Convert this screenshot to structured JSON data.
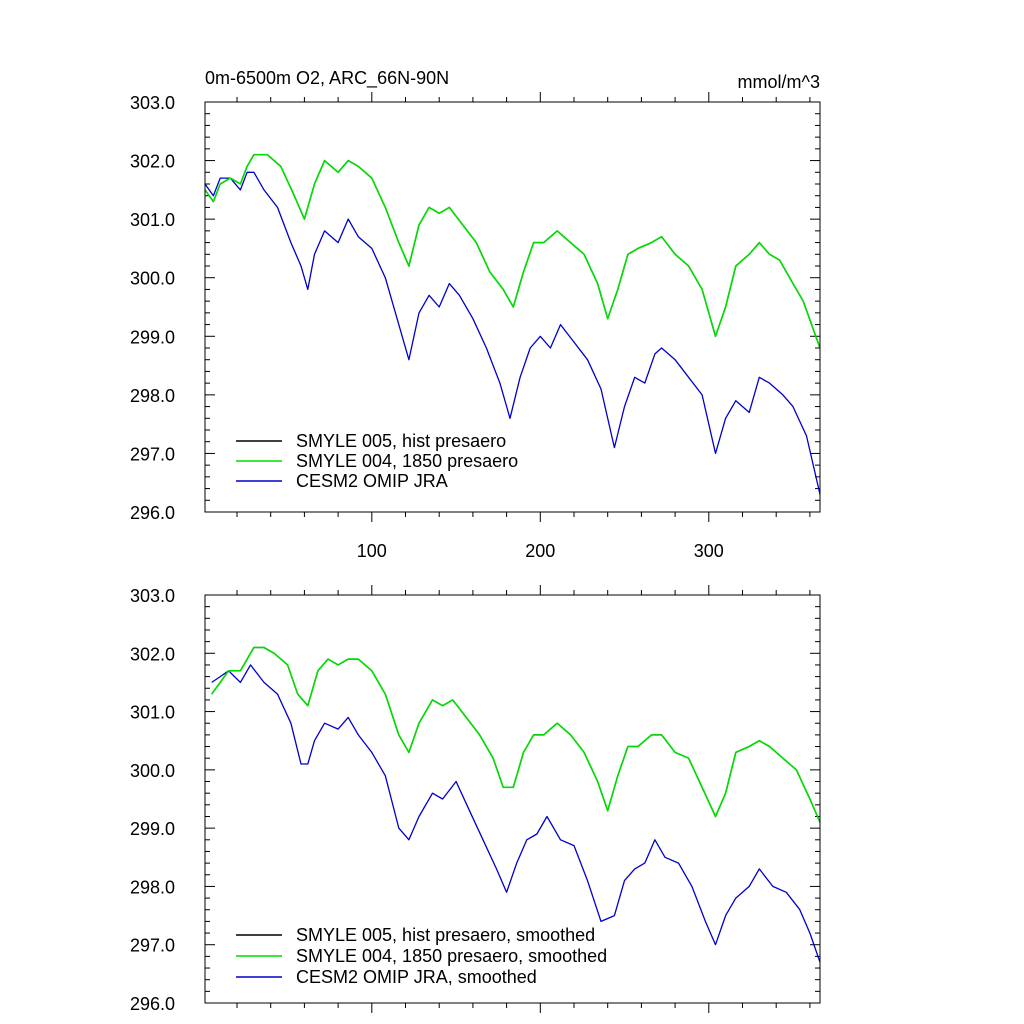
{
  "chart_data": [
    {
      "type": "line",
      "title": "0m-6500m O2, ARC_66N-90N",
      "units": "mmol/m^3",
      "xlim": [
        1,
        366
      ],
      "ylim": [
        296.0,
        303.0
      ],
      "xticks": [
        100,
        200,
        300
      ],
      "xtick_labels": [
        "100",
        "200",
        "300"
      ],
      "yticks": [
        296,
        297,
        298,
        299,
        300,
        301,
        302,
        303
      ],
      "ytick_labels": [
        "296.0",
        "297.0",
        "298.0",
        "299.0",
        "300.0",
        "301.0",
        "302.0",
        "303.0"
      ],
      "legend_position": "bottom-left",
      "series": [
        {
          "name": "SMYLE 005, hist presaero",
          "color": "#000000",
          "x": [
            1,
            6,
            10,
            16,
            22,
            26,
            30,
            38,
            46,
            54,
            60,
            66,
            72,
            80,
            86,
            92,
            100,
            108,
            116,
            122,
            128,
            134,
            140,
            146,
            154,
            162,
            170,
            178,
            184,
            190,
            196,
            202,
            210,
            218,
            226,
            234,
            240,
            246,
            252,
            258,
            266,
            272,
            280,
            288,
            296,
            304,
            310,
            316,
            324,
            330,
            336,
            342,
            350,
            356,
            366
          ],
          "y": [
            301.5,
            301.3,
            301.6,
            301.7,
            301.6,
            301.9,
            302.1,
            302.1,
            301.9,
            301.4,
            301.0,
            301.6,
            302.0,
            301.8,
            302.0,
            301.9,
            301.7,
            301.2,
            300.6,
            300.2,
            300.9,
            301.2,
            301.1,
            301.2,
            300.9,
            300.6,
            300.1,
            299.8,
            299.5,
            300.1,
            300.6,
            300.6,
            300.8,
            300.6,
            300.4,
            299.9,
            299.3,
            299.8,
            300.4,
            300.5,
            300.6,
            300.7,
            300.4,
            300.2,
            299.8,
            299.0,
            299.5,
            300.2,
            300.4,
            300.6,
            300.4,
            300.3,
            299.9,
            299.6,
            298.8
          ]
        },
        {
          "name": "SMYLE 004, 1850 presaero",
          "color": "#00dd00",
          "x": [
            1,
            6,
            10,
            16,
            22,
            26,
            30,
            38,
            46,
            54,
            60,
            66,
            72,
            80,
            86,
            92,
            100,
            108,
            116,
            122,
            128,
            134,
            140,
            146,
            154,
            162,
            170,
            178,
            184,
            190,
            196,
            202,
            210,
            218,
            226,
            234,
            240,
            246,
            252,
            258,
            266,
            272,
            280,
            288,
            296,
            304,
            310,
            316,
            324,
            330,
            336,
            342,
            350,
            356,
            366
          ],
          "y": [
            301.5,
            301.3,
            301.6,
            301.7,
            301.6,
            301.9,
            302.1,
            302.1,
            301.9,
            301.4,
            301.0,
            301.6,
            302.0,
            301.8,
            302.0,
            301.9,
            301.7,
            301.2,
            300.6,
            300.2,
            300.9,
            301.2,
            301.1,
            301.2,
            300.9,
            300.6,
            300.1,
            299.8,
            299.5,
            300.1,
            300.6,
            300.6,
            300.8,
            300.6,
            300.4,
            299.9,
            299.3,
            299.8,
            300.4,
            300.5,
            300.6,
            300.7,
            300.4,
            300.2,
            299.8,
            299.0,
            299.5,
            300.2,
            300.4,
            300.6,
            300.4,
            300.3,
            299.9,
            299.6,
            298.8
          ]
        },
        {
          "name": "CESM2 OMIP JRA",
          "color": "#0000cc",
          "x": [
            1,
            6,
            10,
            16,
            22,
            26,
            30,
            36,
            44,
            52,
            58,
            62,
            66,
            72,
            80,
            86,
            92,
            100,
            108,
            116,
            122,
            128,
            134,
            140,
            146,
            152,
            160,
            168,
            176,
            182,
            188,
            194,
            200,
            206,
            212,
            220,
            228,
            236,
            244,
            250,
            256,
            262,
            268,
            272,
            280,
            288,
            296,
            304,
            310,
            316,
            324,
            330,
            336,
            344,
            350,
            358,
            366
          ],
          "y": [
            301.6,
            301.4,
            301.7,
            301.7,
            301.5,
            301.8,
            301.8,
            301.5,
            301.2,
            300.6,
            300.2,
            299.8,
            300.4,
            300.8,
            300.6,
            301.0,
            300.7,
            300.5,
            300.0,
            299.2,
            298.6,
            299.4,
            299.7,
            299.5,
            299.9,
            299.7,
            299.3,
            298.8,
            298.2,
            297.6,
            298.3,
            298.8,
            299.0,
            298.8,
            299.2,
            298.9,
            298.6,
            298.1,
            297.1,
            297.8,
            298.3,
            298.2,
            298.7,
            298.8,
            298.6,
            298.3,
            298.0,
            297.0,
            297.6,
            297.9,
            297.7,
            298.3,
            298.2,
            298.0,
            297.8,
            297.3,
            296.3
          ]
        }
      ]
    },
    {
      "type": "line",
      "title": "",
      "xlim": [
        1,
        366
      ],
      "ylim": [
        296.0,
        303.0
      ],
      "xticks": [
        100,
        200,
        300
      ],
      "yticks": [
        296,
        297,
        298,
        299,
        300,
        301,
        302,
        303
      ],
      "ytick_labels": [
        "296.0",
        "297.0",
        "298.0",
        "299.0",
        "300.0",
        "301.0",
        "302.0",
        "303.0"
      ],
      "legend_position": "bottom-left",
      "series": [
        {
          "name": "SMYLE 005, hist presaero, smoothed",
          "color": "#000000",
          "x": [
            5,
            10,
            15,
            22,
            30,
            36,
            42,
            50,
            56,
            62,
            68,
            74,
            80,
            86,
            92,
            100,
            108,
            116,
            122,
            128,
            136,
            142,
            148,
            156,
            164,
            172,
            178,
            184,
            190,
            196,
            202,
            210,
            218,
            226,
            234,
            240,
            246,
            252,
            258,
            266,
            272,
            280,
            288,
            296,
            304,
            310,
            316,
            324,
            330,
            336,
            344,
            352,
            360,
            366
          ],
          "y": [
            301.3,
            301.5,
            301.7,
            301.7,
            302.1,
            302.1,
            302.0,
            301.8,
            301.3,
            301.1,
            301.7,
            301.9,
            301.8,
            301.9,
            301.9,
            301.7,
            301.3,
            300.6,
            300.3,
            300.8,
            301.2,
            301.1,
            301.2,
            300.9,
            300.6,
            300.2,
            299.7,
            299.7,
            300.3,
            300.6,
            300.6,
            300.8,
            300.6,
            300.3,
            299.8,
            299.3,
            299.9,
            300.4,
            300.4,
            300.6,
            300.6,
            300.3,
            300.2,
            299.7,
            299.2,
            299.6,
            300.3,
            300.4,
            300.5,
            300.4,
            300.2,
            300.0,
            299.5,
            299.1
          ]
        },
        {
          "name": "SMYLE 004, 1850 presaero, smoothed",
          "color": "#00dd00",
          "x": [
            5,
            10,
            15,
            22,
            30,
            36,
            42,
            50,
            56,
            62,
            68,
            74,
            80,
            86,
            92,
            100,
            108,
            116,
            122,
            128,
            136,
            142,
            148,
            156,
            164,
            172,
            178,
            184,
            190,
            196,
            202,
            210,
            218,
            226,
            234,
            240,
            246,
            252,
            258,
            266,
            272,
            280,
            288,
            296,
            304,
            310,
            316,
            324,
            330,
            336,
            344,
            352,
            360,
            366
          ],
          "y": [
            301.3,
            301.5,
            301.7,
            301.7,
            302.1,
            302.1,
            302.0,
            301.8,
            301.3,
            301.1,
            301.7,
            301.9,
            301.8,
            301.9,
            301.9,
            301.7,
            301.3,
            300.6,
            300.3,
            300.8,
            301.2,
            301.1,
            301.2,
            300.9,
            300.6,
            300.2,
            299.7,
            299.7,
            300.3,
            300.6,
            300.6,
            300.8,
            300.6,
            300.3,
            299.8,
            299.3,
            299.9,
            300.4,
            300.4,
            300.6,
            300.6,
            300.3,
            300.2,
            299.7,
            299.2,
            299.6,
            300.3,
            300.4,
            300.5,
            300.4,
            300.2,
            300.0,
            299.5,
            299.1
          ]
        },
        {
          "name": "CESM2 OMIP JRA, smoothed",
          "color": "#0000cc",
          "x": [
            5,
            10,
            15,
            22,
            28,
            36,
            44,
            52,
            58,
            62,
            66,
            72,
            80,
            86,
            92,
            100,
            108,
            116,
            122,
            128,
            136,
            142,
            150,
            158,
            166,
            174,
            180,
            186,
            192,
            198,
            204,
            212,
            220,
            228,
            236,
            244,
            250,
            256,
            262,
            268,
            274,
            282,
            290,
            298,
            304,
            310,
            316,
            324,
            330,
            338,
            346,
            354,
            360,
            366
          ],
          "y": [
            301.5,
            301.6,
            301.7,
            301.5,
            301.8,
            301.5,
            301.3,
            300.8,
            300.1,
            300.1,
            300.5,
            300.8,
            300.7,
            300.9,
            300.6,
            300.3,
            299.9,
            299.0,
            298.8,
            299.2,
            299.6,
            299.5,
            299.8,
            299.3,
            298.8,
            298.3,
            297.9,
            298.4,
            298.8,
            298.9,
            299.2,
            298.8,
            298.7,
            298.1,
            297.4,
            297.5,
            298.1,
            298.3,
            298.4,
            298.8,
            298.5,
            298.4,
            298.0,
            297.4,
            297.0,
            297.5,
            297.8,
            298.0,
            298.3,
            298.0,
            297.9,
            297.6,
            297.2,
            296.7
          ]
        }
      ]
    }
  ]
}
